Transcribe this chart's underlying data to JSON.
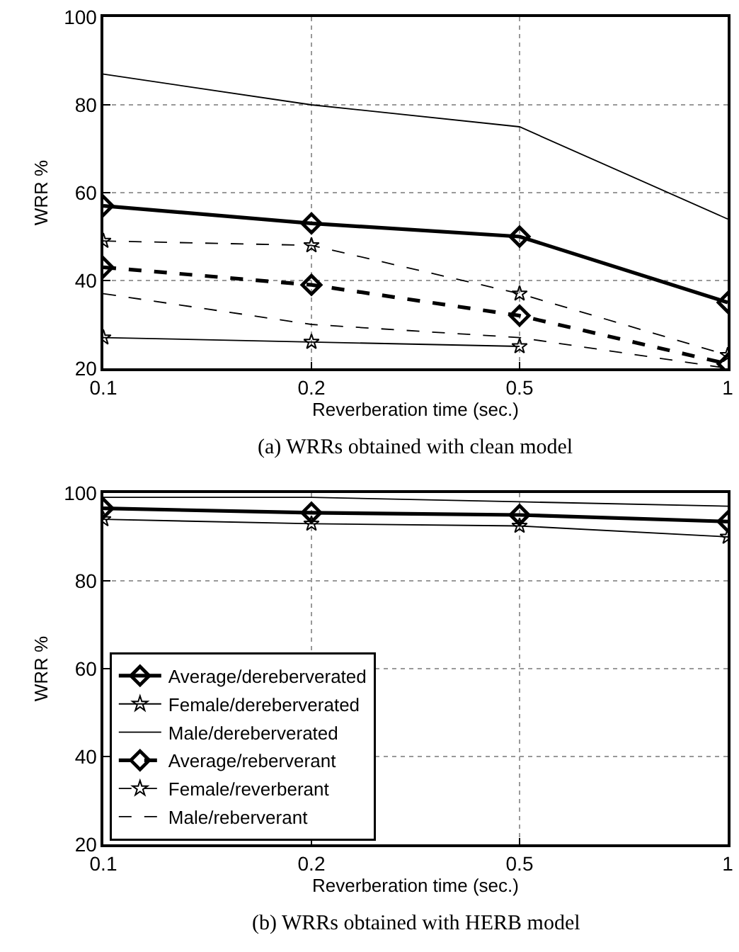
{
  "chart_data": [
    {
      "type": "line",
      "xlabel": "Reverberation time (sec.)",
      "ylabel": "WRR %",
      "categories": [
        "0.1",
        "0.2",
        "0.5",
        "1"
      ],
      "ylim": [
        20,
        100
      ],
      "yticks": [
        20,
        40,
        60,
        80,
        100
      ],
      "grid": true,
      "legend": false,
      "annotations": [
        "(a) WRRs obtained with clean model"
      ],
      "series": [
        {
          "color": "#000000",
          "marker": "diamond",
          "line_style": "solid",
          "values": [
            57,
            53,
            50,
            35
          ]
        },
        {
          "color": "#000000",
          "marker": "star",
          "line_style": "solid",
          "values": [
            27,
            26,
            25,
            null
          ]
        },
        {
          "color": "#000000",
          "marker": "none",
          "line_style": "solid",
          "values": [
            87,
            80,
            75,
            54
          ]
        },
        {
          "color": "#000000",
          "marker": "diamond",
          "line_style": "dashed",
          "values": [
            43,
            39,
            32,
            21
          ]
        },
        {
          "color": "#000000",
          "marker": "star",
          "line_style": "dashed",
          "values": [
            49,
            48,
            37,
            23
          ]
        },
        {
          "color": "#000000",
          "marker": "none",
          "line_style": "dashed",
          "values": [
            37,
            30,
            27,
            20
          ]
        }
      ]
    },
    {
      "type": "line",
      "xlabel": "Reverberation time (sec.)",
      "ylabel": "WRR %",
      "categories": [
        "0.1",
        "0.2",
        "0.5",
        "1"
      ],
      "ylim": [
        20,
        100
      ],
      "yticks": [
        20,
        40,
        60,
        80,
        100
      ],
      "grid": true,
      "legend": "bottom left",
      "annotations": [
        "(b) WRRs obtained with HERB model"
      ],
      "series": [
        {
          "name": "Average/dereberverated",
          "color": "#000000",
          "marker": "diamond",
          "line_style": "solid",
          "values": [
            96.5,
            95.5,
            95,
            93.5
          ]
        },
        {
          "name": "Female/dereberverated",
          "color": "#000000",
          "marker": "star",
          "line_style": "solid",
          "values": [
            94,
            93,
            92.5,
            90
          ]
        },
        {
          "name": "Male/dereberverated",
          "color": "#000000",
          "marker": "none",
          "line_style": "solid",
          "values": [
            99,
            99,
            98,
            97
          ]
        },
        {
          "name": "Average/reberverant",
          "color": "#000000",
          "marker": "diamond",
          "line_style": "dashed",
          "values": [
            null,
            null,
            null,
            null
          ]
        },
        {
          "name": "Female/reverberant",
          "color": "#000000",
          "marker": "star",
          "line_style": "dashed",
          "values": [
            null,
            null,
            null,
            null
          ]
        },
        {
          "name": "Male/reberverant",
          "color": "#000000",
          "marker": "none",
          "line_style": "dashed",
          "values": [
            null,
            null,
            null,
            null
          ]
        }
      ]
    }
  ]
}
